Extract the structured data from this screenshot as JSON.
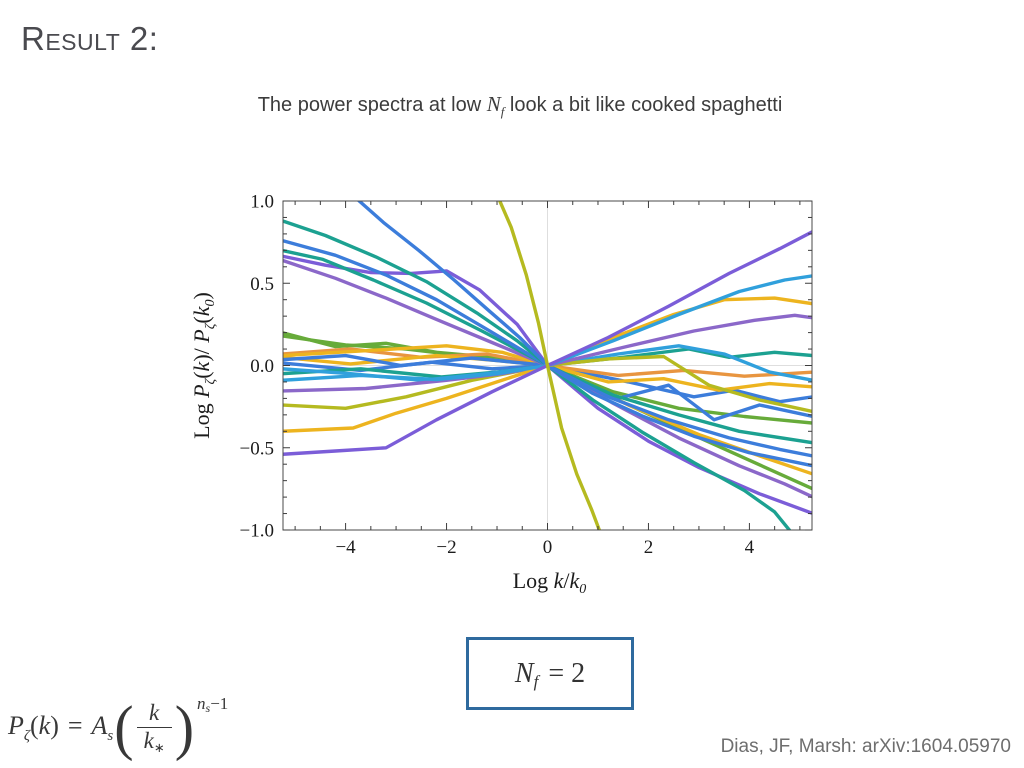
{
  "slide": {
    "title": "Result 2:",
    "subtitle": {
      "pre": "The power spectra at low ",
      "math": "N",
      "math_sub": "f",
      "post": " look a bit like cooked spaghetti"
    },
    "citation": "Dias, JF, Marsh: arXiv:1604.05970"
  },
  "nf_box": {
    "N": "N",
    "sub": "f",
    "eq": "= 2",
    "border_color": "#2e6a9e"
  },
  "formula": {
    "P": "P",
    "Psub": "ζ",
    "lp": "(",
    "k1": "k",
    "rp": ")",
    "eq": "=",
    "A": "A",
    "Asub": "s",
    "bigl": "(",
    "num": "k",
    "den": "k",
    "densub": "∗",
    "bigr": ")",
    "expn": "n",
    "expsub": "s",
    "exprest": "−1"
  },
  "chart_data": {
    "type": "line",
    "title": "",
    "xlim": [
      -5.24,
      5.24
    ],
    "ylim": [
      -1,
      1
    ],
    "x_major_ticks": [
      -4,
      -2,
      0,
      2,
      4
    ],
    "x_tick_labels": [
      "−4",
      "−2",
      "0",
      "2",
      "4"
    ],
    "x_minor_step": 0.5,
    "y_major_ticks": [
      -1,
      -0.5,
      0,
      0.5,
      1
    ],
    "y_tick_labels": [
      "−1.0",
      "−0.5",
      "0.0",
      "0.5",
      "1.0"
    ],
    "y_minor_step": 0.1,
    "grid": {
      "x": [
        0
      ],
      "y": [
        0
      ],
      "color": "#dedede"
    },
    "frame_color": "#4a4a4a",
    "tick_color": "#3c3c3c",
    "label_color": "#1c1c1c",
    "xlabel_parts": [
      {
        "t": "Log "
      },
      {
        "t": "k",
        "it": true
      },
      {
        "t": "/"
      },
      {
        "t": "k",
        "it": true
      },
      {
        "t": "0",
        "sub": true,
        "it": true
      }
    ],
    "ylabel_parts": [
      {
        "t": "Log "
      },
      {
        "t": "P",
        "it": true
      },
      {
        "t": "ζ",
        "sub": true,
        "it": true
      },
      {
        "t": "("
      },
      {
        "t": "k",
        "it": true
      },
      {
        "t": ")/ "
      },
      {
        "t": "P",
        "it": true
      },
      {
        "t": "ζ",
        "sub": true,
        "it": true
      },
      {
        "t": "("
      },
      {
        "t": "k",
        "it": true
      },
      {
        "t": "0",
        "sub": true,
        "it": true
      },
      {
        "t": ")"
      }
    ],
    "legend": "none",
    "palette": {
      "blue": "#3c7ddb",
      "azure": "#30a0dc",
      "teal": "#1ca191",
      "green": "#67ab3a",
      "olive": "#b5ba20",
      "gold": "#edb41f",
      "orange": "#e89540",
      "violet": "#7b5dd8",
      "purple": "#8b68c9"
    },
    "line_width": 3.4,
    "series": [
      {
        "name": "green2",
        "color": "green",
        "points": [
          [
            -5.26,
            0.18
          ],
          [
            -4.0,
            0.125
          ],
          [
            -2.8,
            0.1
          ],
          [
            -1.4,
            0.05
          ],
          [
            0,
            0
          ],
          [
            1.4,
            -0.21
          ],
          [
            2.8,
            -0.41
          ],
          [
            4.1,
            -0.59
          ],
          [
            5.26,
            -0.75
          ]
        ]
      },
      {
        "name": "green1",
        "color": "green",
        "points": [
          [
            -5.26,
            0.2
          ],
          [
            -4.2,
            0.115
          ],
          [
            -3.2,
            0.135
          ],
          [
            -2.2,
            0.08
          ],
          [
            -1.1,
            0.05
          ],
          [
            0,
            0
          ],
          [
            1.3,
            -0.16
          ],
          [
            2.6,
            -0.26
          ],
          [
            3.9,
            -0.31
          ],
          [
            5.26,
            -0.35
          ]
        ]
      },
      {
        "name": "blue4",
        "color": "blue",
        "points": [
          [
            -5.26,
            0.015
          ],
          [
            -3.7,
            -0.03
          ],
          [
            -2.3,
            0.02
          ],
          [
            -1.1,
            -0.02
          ],
          [
            0,
            0
          ],
          [
            1.6,
            -0.1
          ],
          [
            2.9,
            -0.19
          ],
          [
            3.7,
            -0.15
          ],
          [
            4.6,
            -0.22
          ],
          [
            5.26,
            -0.19
          ]
        ]
      },
      {
        "name": "orange1",
        "color": "orange",
        "points": [
          [
            -5.26,
            0.07
          ],
          [
            -3.9,
            0.1
          ],
          [
            -2.5,
            0.05
          ],
          [
            -1.2,
            0.07
          ],
          [
            0,
            0
          ],
          [
            1.4,
            -0.06
          ],
          [
            2.7,
            -0.03
          ],
          [
            3.9,
            -0.065
          ],
          [
            5.26,
            -0.04
          ]
        ]
      },
      {
        "name": "gold3",
        "color": "gold",
        "points": [
          [
            -5.26,
            0.05
          ],
          [
            -3.9,
            0.01
          ],
          [
            -2.2,
            0.06
          ],
          [
            -1.0,
            0.03
          ],
          [
            0,
            0
          ],
          [
            1.6,
            -0.24
          ],
          [
            3.0,
            -0.42
          ],
          [
            4.3,
            -0.56
          ],
          [
            5.26,
            -0.66
          ]
        ]
      },
      {
        "name": "gold2",
        "color": "gold",
        "points": [
          [
            -5.26,
            0.06
          ],
          [
            -3.6,
            0.09
          ],
          [
            -2.0,
            0.12
          ],
          [
            -0.9,
            0.08
          ],
          [
            0,
            0
          ],
          [
            1.2,
            -0.1
          ],
          [
            2.3,
            -0.08
          ],
          [
            3.4,
            -0.15
          ],
          [
            4.4,
            -0.11
          ],
          [
            5.26,
            -0.13
          ]
        ]
      },
      {
        "name": "teal-flat",
        "color": "teal",
        "points": [
          [
            -5.26,
            -0.05
          ],
          [
            -3.7,
            -0.02
          ],
          [
            -2.1,
            -0.07
          ],
          [
            -1.0,
            -0.04
          ],
          [
            0,
            0
          ],
          [
            1.5,
            0.05
          ],
          [
            2.8,
            0.1
          ],
          [
            3.6,
            0.05
          ],
          [
            4.5,
            0.08
          ],
          [
            5.26,
            0.06
          ]
        ]
      },
      {
        "name": "azure1",
        "color": "azure",
        "points": [
          [
            -5.26,
            -0.02
          ],
          [
            -3.9,
            -0.05
          ],
          [
            -2.5,
            -0.09
          ],
          [
            -1.2,
            -0.05
          ],
          [
            0,
            0
          ],
          [
            1.4,
            0.07
          ],
          [
            2.6,
            0.12
          ],
          [
            3.5,
            0.07
          ],
          [
            4.4,
            -0.04
          ],
          [
            5.26,
            -0.09
          ]
        ]
      },
      {
        "name": "blue3",
        "color": "blue",
        "points": [
          [
            -5.26,
            0.035
          ],
          [
            -4.0,
            0.06
          ],
          [
            -2.9,
            0.0
          ],
          [
            -1.5,
            0.045
          ],
          [
            0,
            0
          ],
          [
            1.4,
            -0.2
          ],
          [
            2.4,
            -0.12
          ],
          [
            3.3,
            -0.33
          ],
          [
            4.2,
            -0.24
          ],
          [
            5.26,
            -0.31
          ]
        ]
      },
      {
        "name": "purple1",
        "color": "purple",
        "points": [
          [
            -5.26,
            0.64
          ],
          [
            -4.2,
            0.53
          ],
          [
            -3.2,
            0.41
          ],
          [
            -2.2,
            0.28
          ],
          [
            -1.1,
            0.14
          ],
          [
            0,
            0
          ],
          [
            1.3,
            -0.23
          ],
          [
            2.6,
            -0.44
          ],
          [
            3.8,
            -0.61
          ],
          [
            4.7,
            -0.72
          ],
          [
            5.26,
            -0.8
          ]
        ]
      },
      {
        "name": "violet1",
        "color": "violet",
        "points": [
          [
            -5.26,
            0.665
          ],
          [
            -4.4,
            0.61
          ],
          [
            -3.5,
            0.565
          ],
          [
            -2.7,
            0.56
          ],
          [
            -2.0,
            0.575
          ],
          [
            -1.35,
            0.46
          ],
          [
            -0.6,
            0.25
          ],
          [
            0,
            0
          ],
          [
            1.0,
            -0.26
          ],
          [
            2.0,
            -0.46
          ],
          [
            3.0,
            -0.62
          ],
          [
            4.2,
            -0.78
          ],
          [
            5.26,
            -0.9
          ]
        ]
      },
      {
        "name": "teal2",
        "color": "teal",
        "points": [
          [
            -5.26,
            0.7
          ],
          [
            -4.45,
            0.645
          ],
          [
            -3.45,
            0.52
          ],
          [
            -2.4,
            0.38
          ],
          [
            -1.3,
            0.21
          ],
          [
            0,
            0
          ],
          [
            1.3,
            -0.18
          ],
          [
            2.6,
            -0.3
          ],
          [
            3.8,
            -0.4
          ],
          [
            5.26,
            -0.47
          ]
        ]
      },
      {
        "name": "blue2",
        "color": "blue",
        "points": [
          [
            -5.26,
            0.76
          ],
          [
            -4.2,
            0.67
          ],
          [
            -3.2,
            0.55
          ],
          [
            -2.2,
            0.4
          ],
          [
            -1.2,
            0.22
          ],
          [
            0,
            0
          ],
          [
            1.2,
            -0.19
          ],
          [
            2.4,
            -0.33
          ],
          [
            3.6,
            -0.44
          ],
          [
            4.6,
            -0.51
          ],
          [
            5.26,
            -0.55
          ]
        ]
      },
      {
        "name": "teal-long",
        "color": "teal",
        "points": [
          [
            -5.26,
            0.88
          ],
          [
            -4.4,
            0.79
          ],
          [
            -3.4,
            0.66
          ],
          [
            -2.4,
            0.51
          ],
          [
            -1.4,
            0.32
          ],
          [
            -0.6,
            0.15
          ],
          [
            0,
            0
          ],
          [
            0.9,
            -0.21
          ],
          [
            1.9,
            -0.41
          ],
          [
            2.9,
            -0.59
          ],
          [
            3.9,
            -0.76
          ],
          [
            4.5,
            -0.89
          ],
          [
            4.95,
            -1.06
          ]
        ]
      },
      {
        "name": "blue-steep",
        "color": "blue",
        "points": [
          [
            -3.95,
            1.06
          ],
          [
            -3.25,
            0.87
          ],
          [
            -2.55,
            0.7
          ],
          [
            -1.85,
            0.52
          ],
          [
            -1.15,
            0.33
          ],
          [
            -0.55,
            0.17
          ],
          [
            0,
            0
          ],
          [
            0.9,
            -0.17
          ],
          [
            1.9,
            -0.31
          ],
          [
            2.9,
            -0.43
          ],
          [
            4.0,
            -0.53
          ],
          [
            5.26,
            -0.61
          ]
        ]
      },
      {
        "name": "olive2",
        "color": "olive",
        "points": [
          [
            -5.26,
            -0.24
          ],
          [
            -4.0,
            -0.26
          ],
          [
            -2.8,
            -0.19
          ],
          [
            -1.5,
            -0.09
          ],
          [
            0,
            0
          ],
          [
            1.2,
            0.04
          ],
          [
            2.3,
            0.055
          ],
          [
            3.2,
            -0.12
          ],
          [
            4.2,
            -0.21
          ],
          [
            5.26,
            -0.28
          ]
        ]
      },
      {
        "name": "purple2",
        "color": "purple",
        "points": [
          [
            -5.26,
            -0.155
          ],
          [
            -3.6,
            -0.14
          ],
          [
            -2.0,
            -0.09
          ],
          [
            -0.9,
            -0.05
          ],
          [
            0,
            0
          ],
          [
            1.5,
            0.11
          ],
          [
            2.9,
            0.21
          ],
          [
            4.1,
            0.275
          ],
          [
            4.9,
            0.305
          ],
          [
            5.26,
            0.29
          ]
        ]
      },
      {
        "name": "gold-rise",
        "color": "gold",
        "points": [
          [
            -5.26,
            -0.4
          ],
          [
            -3.85,
            -0.38
          ],
          [
            -3.0,
            -0.29
          ],
          [
            -2.0,
            -0.2
          ],
          [
            -1.0,
            -0.1
          ],
          [
            0,
            0
          ],
          [
            1.3,
            0.17
          ],
          [
            2.5,
            0.31
          ],
          [
            3.5,
            0.4
          ],
          [
            4.5,
            0.41
          ],
          [
            5.26,
            0.375
          ]
        ]
      },
      {
        "name": "azure2",
        "color": "azure",
        "points": [
          [
            -5.26,
            -0.09
          ],
          [
            -3.7,
            -0.06
          ],
          [
            -2.2,
            -0.085
          ],
          [
            -1.0,
            -0.05
          ],
          [
            0,
            0
          ],
          [
            1.3,
            0.15
          ],
          [
            2.6,
            0.31
          ],
          [
            3.8,
            0.45
          ],
          [
            4.7,
            0.52
          ],
          [
            5.26,
            0.545
          ]
        ]
      },
      {
        "name": "violet-rise",
        "color": "violet",
        "points": [
          [
            -5.26,
            -0.54
          ],
          [
            -4.2,
            -0.52
          ],
          [
            -3.2,
            -0.5
          ],
          [
            -2.2,
            -0.33
          ],
          [
            -1.1,
            -0.16
          ],
          [
            0,
            0
          ],
          [
            1.2,
            0.17
          ],
          [
            2.4,
            0.36
          ],
          [
            3.6,
            0.56
          ],
          [
            4.6,
            0.71
          ],
          [
            5.26,
            0.815
          ]
        ]
      },
      {
        "name": "olive-steep",
        "color": "olive",
        "points": [
          [
            -1.03,
            1.06
          ],
          [
            -0.72,
            0.84
          ],
          [
            -0.42,
            0.55
          ],
          [
            -0.18,
            0.26
          ],
          [
            0,
            0
          ],
          [
            0.28,
            -0.38
          ],
          [
            0.58,
            -0.66
          ],
          [
            0.88,
            -0.88
          ],
          [
            1.1,
            -1.06
          ]
        ]
      }
    ]
  }
}
